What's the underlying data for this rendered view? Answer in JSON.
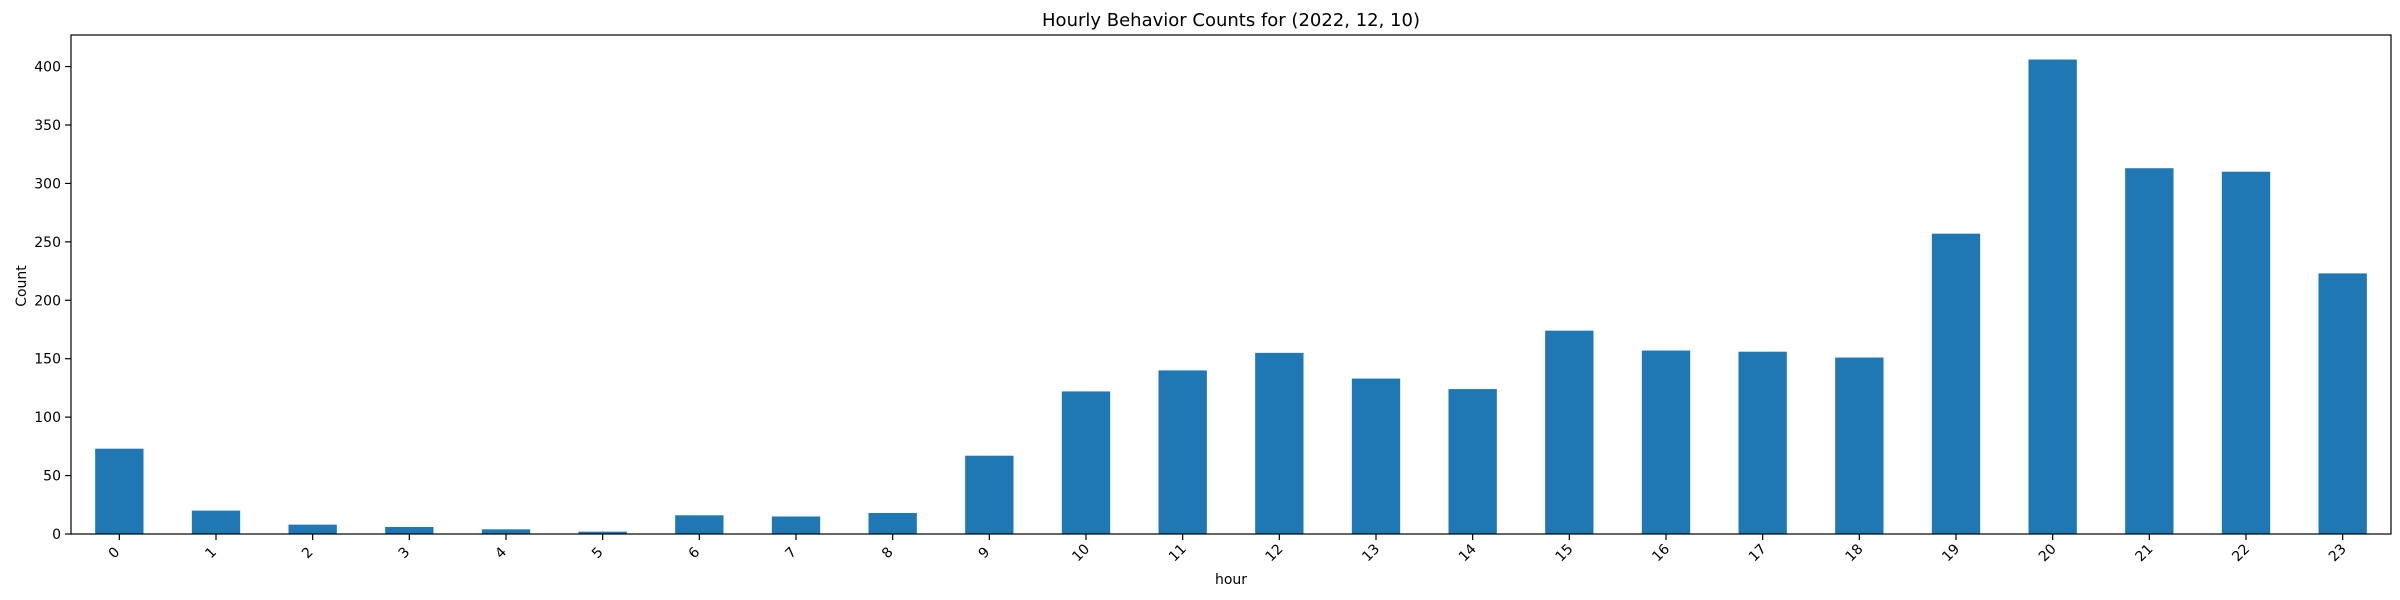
{
  "colors": {
    "bar": "#1f77b4",
    "axis": "#000000",
    "background": "#ffffff"
  },
  "chart_data": {
    "type": "bar",
    "title": "Hourly Behavior Counts for (2022, 12, 10)",
    "xlabel": "hour",
    "ylabel": "Count",
    "ylim": [
      0,
      427
    ],
    "yticks": [
      0,
      50,
      100,
      150,
      200,
      250,
      300,
      350,
      400
    ],
    "grid": false,
    "legend": "none",
    "categories": [
      "0",
      "1",
      "2",
      "3",
      "4",
      "5",
      "6",
      "7",
      "8",
      "9",
      "10",
      "11",
      "12",
      "13",
      "14",
      "15",
      "16",
      "17",
      "18",
      "19",
      "20",
      "21",
      "22",
      "23"
    ],
    "values": [
      73,
      20,
      8,
      6,
      4,
      2,
      16,
      15,
      18,
      67,
      122,
      140,
      155,
      133,
      124,
      174,
      157,
      156,
      151,
      257,
      406,
      313,
      310,
      223
    ]
  }
}
